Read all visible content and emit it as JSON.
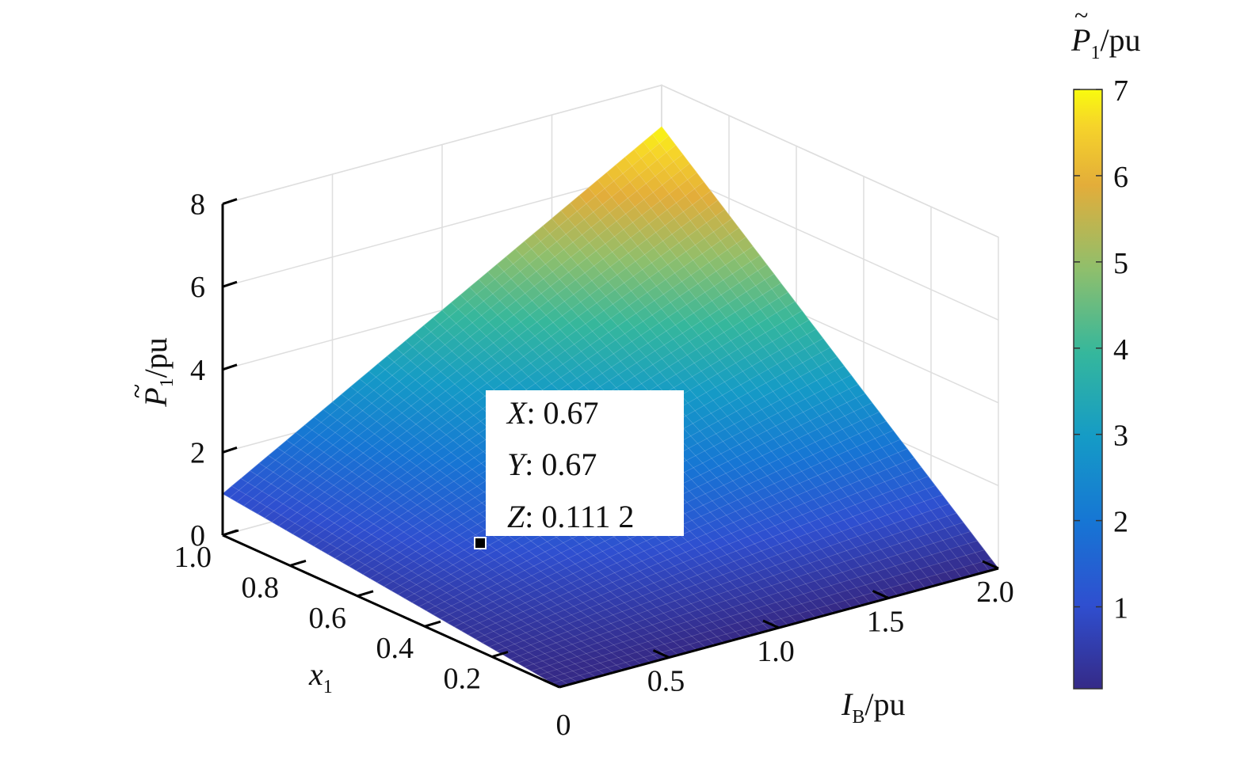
{
  "chart_data": {
    "type": "surface",
    "title": "",
    "x_axis": {
      "label_main": "I",
      "label_sub": "B",
      "label_unit": "/pu",
      "range": [
        0,
        2
      ],
      "ticks": [
        "0",
        "0.5",
        "1.0",
        "1.5",
        "2.0"
      ],
      "tick_values": [
        0,
        0.5,
        1.0,
        1.5,
        2.0
      ]
    },
    "y_axis": {
      "label_main": "x",
      "label_sub": "1",
      "range": [
        0,
        1
      ],
      "ticks": [
        "0.2",
        "0.4",
        "0.6",
        "0.8",
        "1.0"
      ],
      "tick_values": [
        0.2,
        0.4,
        0.6,
        0.8,
        1.0
      ]
    },
    "z_axis": {
      "label_main": "P",
      "label_sub": "1",
      "label_unit": "/pu",
      "range": [
        0,
        8
      ],
      "ticks": [
        "0",
        "2",
        "4",
        "6",
        "8"
      ],
      "tick_values": [
        0,
        2,
        4,
        6,
        8
      ]
    },
    "colorbar": {
      "label_main": "P",
      "label_sub": "1",
      "label_unit": "/pu",
      "range": [
        0.05,
        7
      ],
      "ticks": [
        "1",
        "2",
        "3",
        "4",
        "5",
        "6",
        "7"
      ],
      "tick_values": [
        1,
        2,
        3,
        4,
        5,
        6,
        7
      ],
      "colormap": "parula"
    },
    "surface_corner_values": [
      {
        "x": 0,
        "y": 0,
        "z": 0
      },
      {
        "x": 0,
        "y": 1,
        "z": 1
      },
      {
        "x": 2,
        "y": 0,
        "z": 0
      },
      {
        "x": 2,
        "y": 1,
        "z": 7
      }
    ],
    "datatip": {
      "x": 0.67,
      "y": 0.67,
      "z": 0.1112,
      "lines": [
        {
          "key": "X",
          "value": ": 0.67"
        },
        {
          "key": "Y",
          "value": ": 0.67"
        },
        {
          "key": "Z",
          "value": ": 0.111 2"
        }
      ]
    },
    "grid": true
  }
}
